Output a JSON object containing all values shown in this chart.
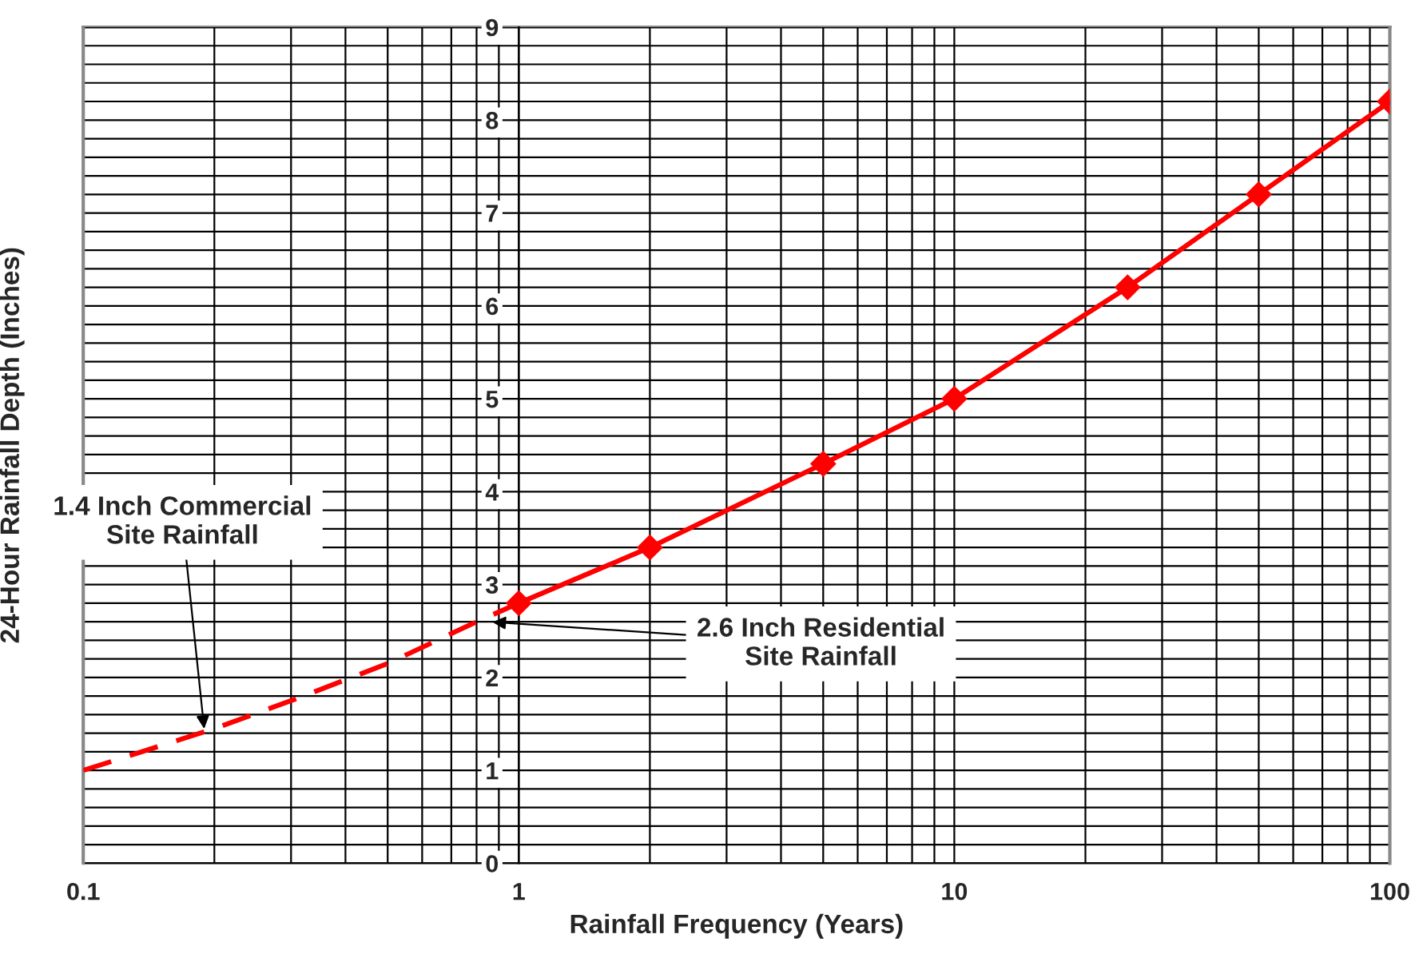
{
  "chart_data": {
    "type": "line",
    "xlabel": "Rainfall Frequency (Years)",
    "ylabel": "24-Hour Rainfall Depth (Inches)",
    "log": "x",
    "grid": true,
    "legend": false,
    "xlim": [
      0.1,
      100
    ],
    "xticks": [
      0.1,
      1,
      10,
      100
    ],
    "ylim": [
      0,
      9
    ],
    "yticks": [
      0,
      1,
      2,
      3,
      4,
      5,
      6,
      7,
      8,
      9
    ],
    "series": [
      {
        "color": "#ff0000",
        "line_style": "dashed",
        "marker": "none",
        "x": [
          0.1,
          0.2,
          0.3,
          0.5,
          0.8,
          1
        ],
        "values": [
          1.0,
          1.45,
          1.75,
          2.15,
          2.6,
          2.8
        ]
      },
      {
        "color": "#ff0000",
        "line_style": "solid",
        "marker": "diamond",
        "x": [
          1,
          2,
          5,
          10,
          25,
          50,
          100
        ],
        "values": [
          2.8,
          3.4,
          4.3,
          5.0,
          6.2,
          7.2,
          8.2
        ]
      }
    ],
    "annotations": [
      {
        "text": "1.4 Inch Commercial\nSite Rainfall",
        "x": 0.19,
        "y": 1.4
      },
      {
        "text": "2.6 Inch Residential\nSite Rainfall",
        "x": 0.85,
        "y": 2.6
      }
    ]
  }
}
